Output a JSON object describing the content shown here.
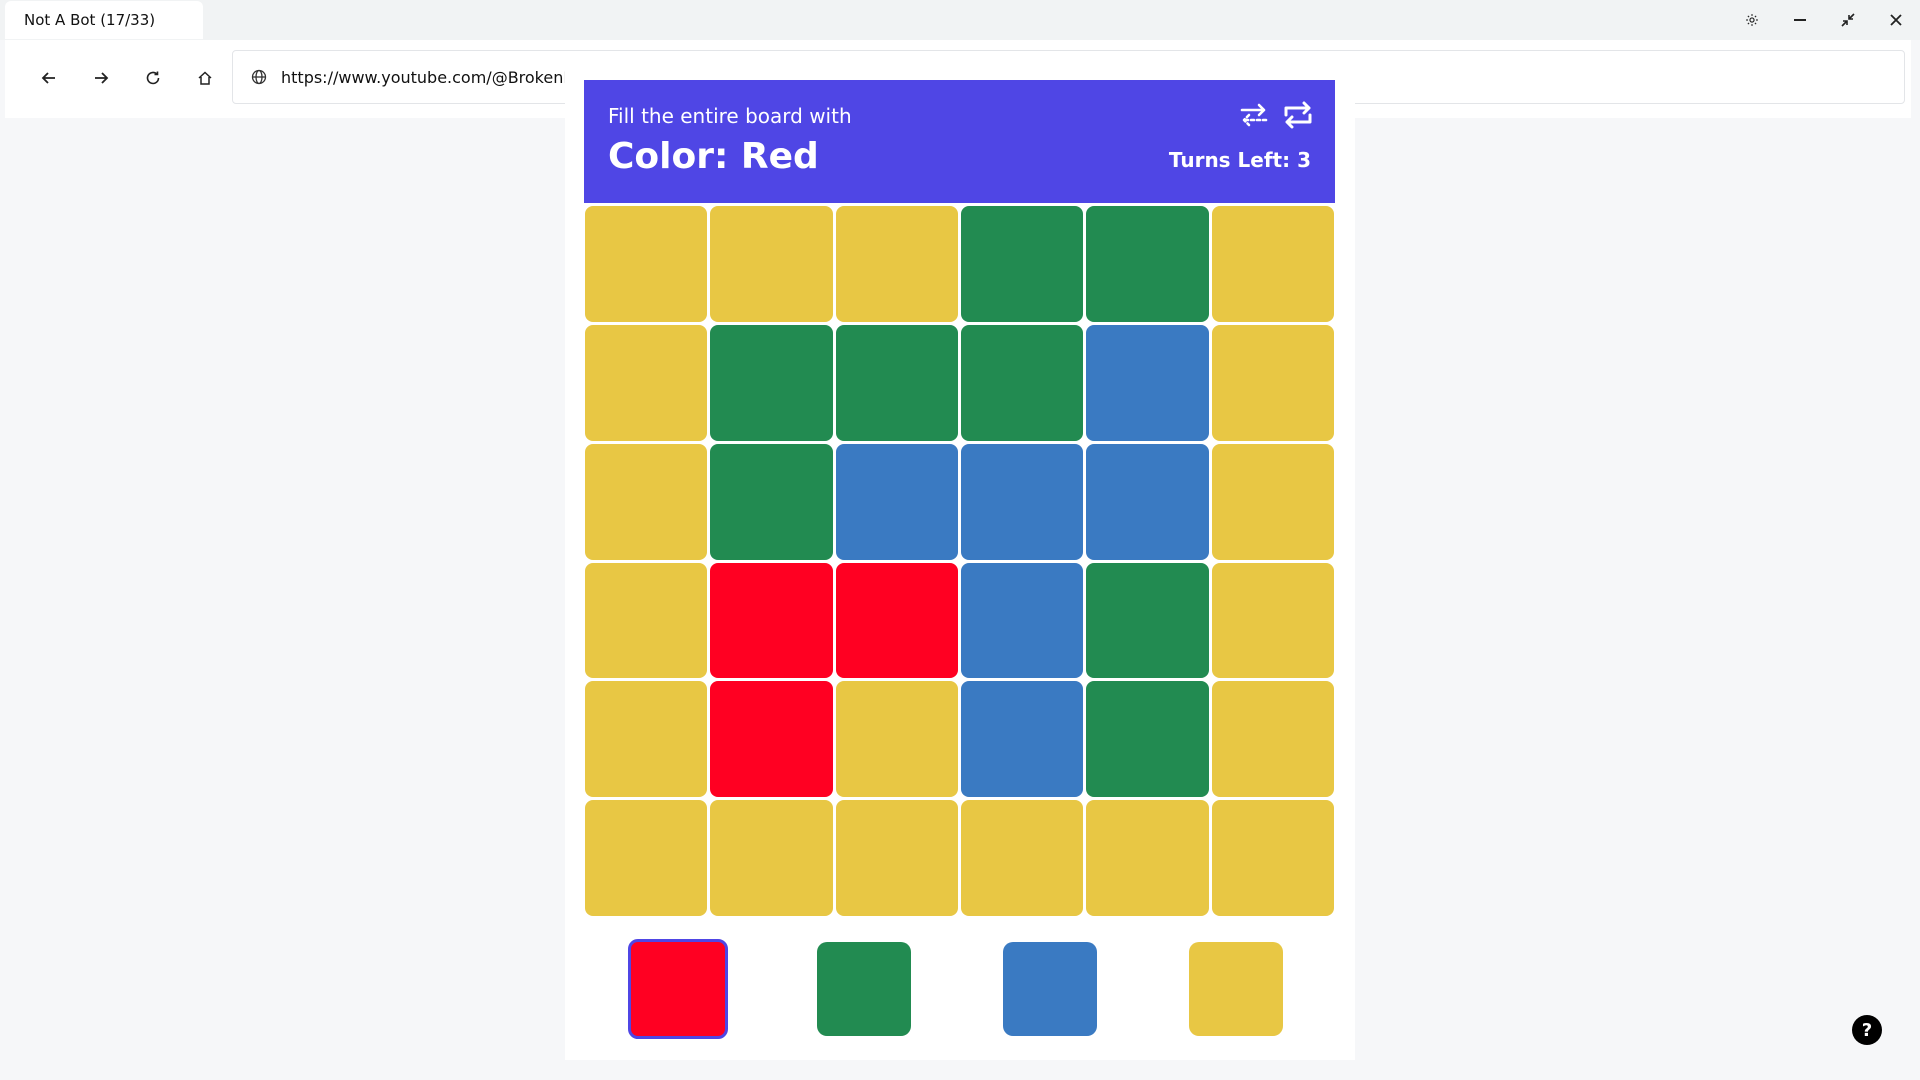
{
  "browser": {
    "tab_title": "Not A Bot (17/33)",
    "url": "https://www.youtube.com/@BrokenBo"
  },
  "game": {
    "subtitle": "Fill the entire board with",
    "target": "Color: Red",
    "turns": "Turns Left: 3",
    "colors": {
      "Y": "#e8c744",
      "G": "#228b51",
      "B": "#3a7ac2",
      "R": "#ff0022",
      "accent": "#4f46e5"
    },
    "board": [
      [
        "Y",
        "Y",
        "Y",
        "G",
        "G",
        "Y"
      ],
      [
        "Y",
        "G",
        "G",
        "G",
        "B",
        "Y"
      ],
      [
        "Y",
        "G",
        "B",
        "B",
        "B",
        "Y"
      ],
      [
        "Y",
        "R",
        "R",
        "B",
        "G",
        "Y"
      ],
      [
        "Y",
        "R",
        "Y",
        "B",
        "G",
        "Y"
      ],
      [
        "Y",
        "Y",
        "Y",
        "Y",
        "Y",
        "Y"
      ]
    ],
    "options": [
      {
        "color": "R",
        "name": "red",
        "selected": true
      },
      {
        "color": "G",
        "name": "green",
        "selected": false
      },
      {
        "color": "B",
        "name": "blue",
        "selected": false
      },
      {
        "color": "Y",
        "name": "yellow",
        "selected": false
      }
    ]
  },
  "help_label": "?"
}
